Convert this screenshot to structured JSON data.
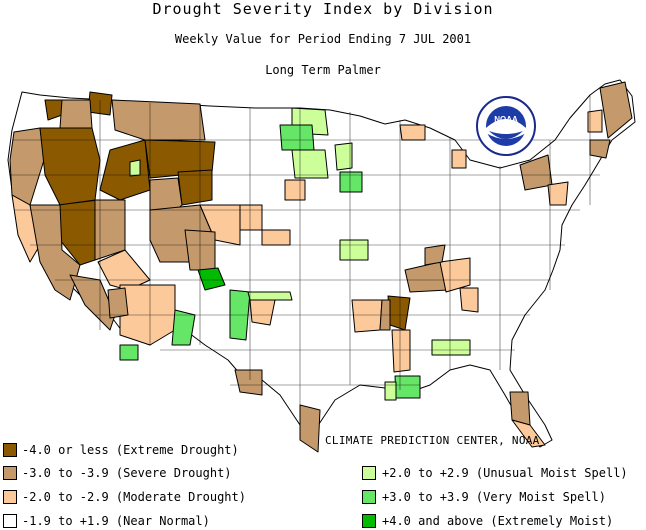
{
  "header": {
    "title": "Drought Severity Index by Division",
    "subtitle": "Weekly Value for Period Ending  7 JUL 2001",
    "index_name": "Long Term Palmer"
  },
  "logo": {
    "text": "NOAA",
    "icon": "noaa-seal-icon"
  },
  "credit": "CLIMATE PREDICTION CENTER, NOAA",
  "colors": {
    "extreme_drought": "#8b5a00",
    "severe_drought": "#c49a6c",
    "moderate_drought": "#fcc99b",
    "near_normal": "#ffffff",
    "unusual_moist": "#ccff99",
    "very_moist": "#66e666",
    "extremely_moist": "#00bb00",
    "boundary": "#000000"
  },
  "legend": {
    "left": [
      {
        "label": "-4.0 or less (Extreme Drought)",
        "color": "#8b5a00"
      },
      {
        "label": "-3.0 to -3.9 (Severe Drought)",
        "color": "#c49a6c"
      },
      {
        "label": "-2.0 to -2.9 (Moderate Drought)",
        "color": "#fcc99b"
      },
      {
        "label": "-1.9 to +1.9 (Near Normal)",
        "color": "#ffffff"
      }
    ],
    "right": [
      {
        "label": "+2.0 to +2.9 (Unusual Moist Spell)",
        "color": "#ccff99"
      },
      {
        "label": "+3.0 to +3.9 (Very Moist Spell)",
        "color": "#66e666"
      },
      {
        "label": "+4.0 and above (Extremely Moist)",
        "color": "#00bb00"
      }
    ]
  }
}
